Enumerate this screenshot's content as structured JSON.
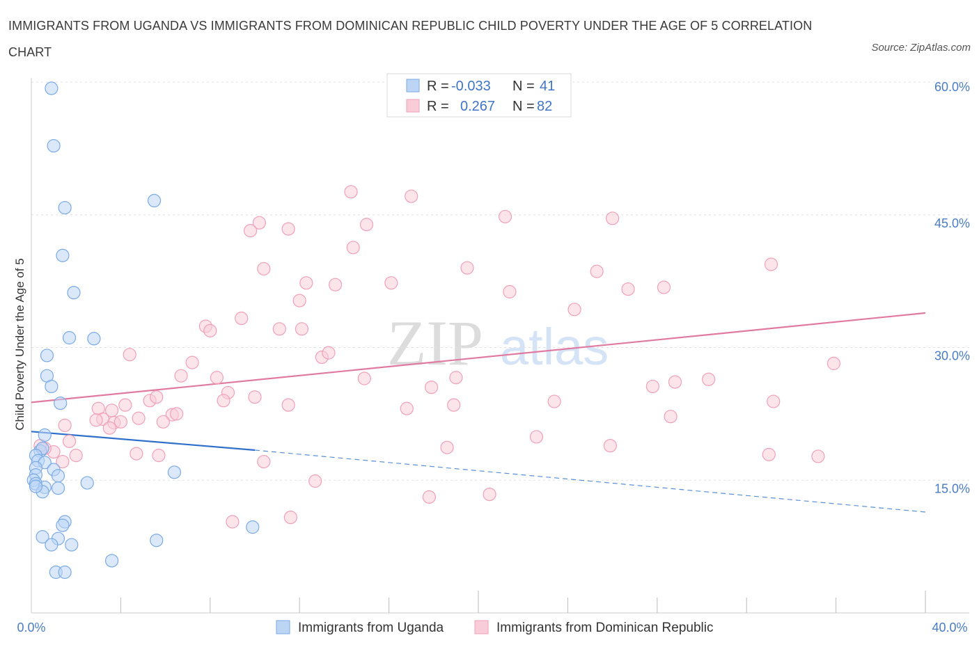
{
  "title": "IMMIGRANTS FROM UGANDA VS IMMIGRANTS FROM DOMINICAN REPUBLIC CHILD POVERTY UNDER THE AGE OF 5 CORRELATION CHART",
  "source": "Source: ZipAtlas.com",
  "watermark": {
    "zip": "ZIP",
    "atlas": "atlas"
  },
  "legend_box": {
    "rows": [
      {
        "r_label": "R =",
        "r_value": "-0.033",
        "n_label": "N =",
        "n_value": "41"
      },
      {
        "r_label": "R =",
        "r_value": "0.267",
        "n_label": "N =",
        "n_value": "82"
      }
    ]
  },
  "chart_data": {
    "type": "scatter",
    "ylabel": "Child Poverty Under the Age of 5",
    "xlim": [
      0,
      40
    ],
    "ylim": [
      0,
      60
    ],
    "x_ticks_labels": [
      "0.0%",
      "40.0%"
    ],
    "y_ticks": [
      {
        "value": 15,
        "label": "15.0%"
      },
      {
        "value": 30,
        "label": "30.0%"
      },
      {
        "value": 45,
        "label": "45.0%"
      },
      {
        "value": 60,
        "label": "60.0%"
      }
    ],
    "grid": "horizontal dashed",
    "series": [
      {
        "name": "Immigrants from Uganda",
        "color": "#7aaae6",
        "fill": "#bcd5f5",
        "trend": {
          "x0": 0.0,
          "y0": 20.5,
          "x1": 10.0,
          "y1": 18.4,
          "dash_to_x": 40.0,
          "dash_to_y": 11.4
        },
        "points": [
          [
            0.9,
            59.3
          ],
          [
            1.0,
            52.8
          ],
          [
            1.5,
            45.8
          ],
          [
            5.5,
            46.6
          ],
          [
            1.4,
            40.4
          ],
          [
            1.9,
            36.2
          ],
          [
            1.7,
            31.1
          ],
          [
            2.8,
            31.0
          ],
          [
            0.7,
            29.1
          ],
          [
            0.7,
            26.8
          ],
          [
            0.9,
            25.6
          ],
          [
            1.3,
            23.7
          ],
          [
            0.6,
            20.1
          ],
          [
            0.4,
            18.3
          ],
          [
            0.5,
            18.6
          ],
          [
            0.2,
            17.8
          ],
          [
            0.3,
            17.2
          ],
          [
            0.6,
            17.0
          ],
          [
            0.2,
            16.4
          ],
          [
            1.0,
            16.2
          ],
          [
            0.2,
            15.6
          ],
          [
            1.2,
            15.5
          ],
          [
            0.1,
            15.0
          ],
          [
            0.2,
            14.6
          ],
          [
            0.6,
            14.2
          ],
          [
            1.2,
            14.1
          ],
          [
            0.5,
            13.7
          ],
          [
            2.5,
            14.7
          ],
          [
            6.4,
            15.9
          ],
          [
            1.5,
            10.3
          ],
          [
            1.4,
            9.9
          ],
          [
            9.9,
            9.7
          ],
          [
            0.5,
            8.6
          ],
          [
            1.2,
            8.4
          ],
          [
            0.9,
            7.7
          ],
          [
            1.8,
            7.7
          ],
          [
            5.6,
            8.2
          ],
          [
            3.6,
            5.9
          ],
          [
            1.1,
            4.6
          ],
          [
            1.5,
            4.6
          ],
          [
            0.2,
            14.3
          ]
        ]
      },
      {
        "name": "Immigrants from Dominican Republic",
        "color": "#f0a0b8",
        "fill": "#f8cdd9",
        "trend": {
          "x0": 0.0,
          "y0": 23.8,
          "x1": 40.0,
          "y1": 33.9
        },
        "points": [
          [
            14.3,
            47.6
          ],
          [
            17.0,
            47.1
          ],
          [
            21.2,
            44.8
          ],
          [
            26.0,
            44.6
          ],
          [
            10.2,
            44.1
          ],
          [
            9.8,
            43.2
          ],
          [
            11.5,
            43.4
          ],
          [
            15.0,
            43.9
          ],
          [
            14.4,
            41.3
          ],
          [
            19.5,
            39.0
          ],
          [
            10.4,
            38.9
          ],
          [
            25.3,
            38.6
          ],
          [
            33.1,
            39.4
          ],
          [
            12.3,
            37.3
          ],
          [
            13.6,
            37.1
          ],
          [
            16.1,
            37.3
          ],
          [
            21.4,
            36.3
          ],
          [
            26.7,
            36.6
          ],
          [
            28.3,
            36.8
          ],
          [
            12.0,
            35.3
          ],
          [
            24.3,
            34.3
          ],
          [
            9.4,
            33.3
          ],
          [
            7.8,
            32.4
          ],
          [
            8.0,
            31.9
          ],
          [
            11.1,
            32.1
          ],
          [
            12.1,
            32.1
          ],
          [
            13.0,
            28.9
          ],
          [
            13.3,
            29.4
          ],
          [
            4.4,
            29.2
          ],
          [
            7.2,
            28.3
          ],
          [
            35.9,
            28.2
          ],
          [
            6.7,
            26.8
          ],
          [
            8.3,
            26.6
          ],
          [
            14.9,
            26.5
          ],
          [
            19.0,
            26.6
          ],
          [
            27.8,
            25.6
          ],
          [
            28.8,
            26.1
          ],
          [
            30.3,
            26.4
          ],
          [
            17.9,
            25.5
          ],
          [
            8.8,
            24.9
          ],
          [
            5.3,
            24.0
          ],
          [
            5.6,
            24.4
          ],
          [
            8.6,
            24.0
          ],
          [
            10.0,
            24.4
          ],
          [
            4.2,
            23.5
          ],
          [
            11.5,
            23.5
          ],
          [
            18.9,
            23.5
          ],
          [
            23.4,
            23.9
          ],
          [
            33.2,
            23.9
          ],
          [
            3.0,
            23.1
          ],
          [
            3.6,
            22.9
          ],
          [
            16.8,
            23.1
          ],
          [
            6.3,
            22.4
          ],
          [
            6.5,
            22.5
          ],
          [
            3.2,
            21.9
          ],
          [
            4.8,
            22.0
          ],
          [
            5.9,
            21.6
          ],
          [
            3.7,
            21.5
          ],
          [
            4.0,
            21.6
          ],
          [
            1.5,
            21.2
          ],
          [
            3.5,
            20.9
          ],
          [
            28.6,
            22.2
          ],
          [
            2.9,
            21.8
          ],
          [
            22.6,
            19.9
          ],
          [
            1.7,
            19.4
          ],
          [
            18.6,
            18.7
          ],
          [
            25.9,
            18.9
          ],
          [
            4.7,
            18.0
          ],
          [
            5.7,
            17.8
          ],
          [
            2.0,
            17.8
          ],
          [
            1.0,
            18.2
          ],
          [
            0.6,
            18.6
          ],
          [
            1.4,
            17.1
          ],
          [
            10.4,
            17.1
          ],
          [
            33.0,
            17.9
          ],
          [
            35.2,
            17.7
          ],
          [
            12.7,
            14.9
          ],
          [
            17.8,
            13.1
          ],
          [
            20.5,
            13.4
          ],
          [
            9.0,
            10.3
          ],
          [
            11.6,
            10.8
          ],
          [
            0.4,
            18.9
          ]
        ]
      }
    ]
  },
  "bottom_legend": [
    {
      "label": "Immigrants from Uganda"
    },
    {
      "label": "Immigrants from Dominican Republic"
    }
  ]
}
